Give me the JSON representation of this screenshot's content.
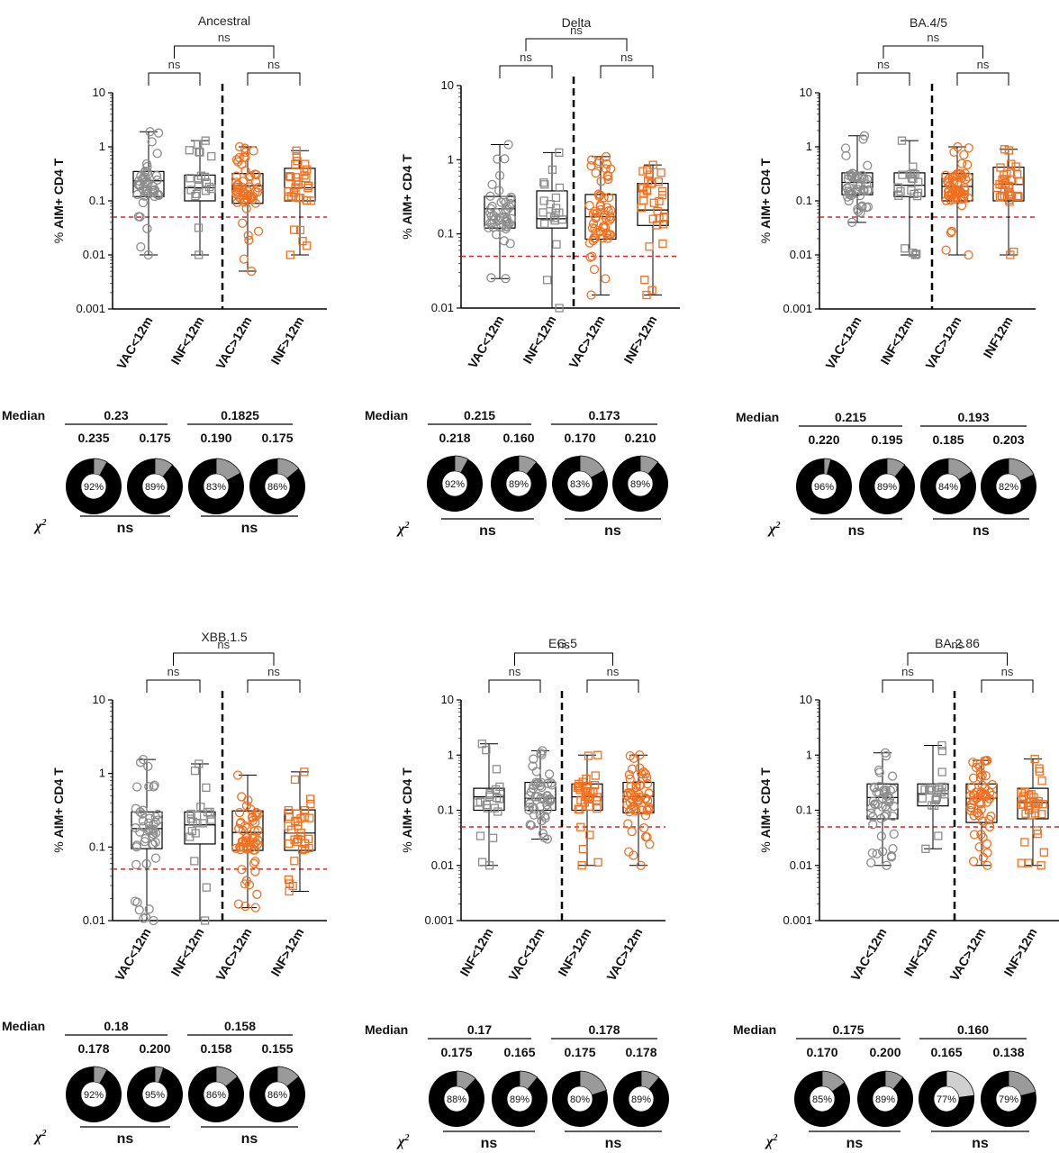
{
  "colors": {
    "grey_points": "#8c8c8c",
    "orange_points": "#f07020",
    "threshold_line": "#d62728",
    "donut_main": "#000000",
    "donut_minor": "#9a9a9a",
    "donut_minor_light": "#d0d0d0"
  },
  "common": {
    "ylabel_prefix": "% ",
    "ylabel_bold": "AIM+ CD4 T",
    "median_title": "Median",
    "chi_label": "χ",
    "chi_sup": "2",
    "ns": "ns"
  },
  "chart_data": [
    {
      "type": "box-scatter",
      "title": "Ancestral",
      "yscale": "log",
      "ylim": [
        0.001,
        10
      ],
      "yticks": [
        "0.001",
        "0.01",
        "0.1",
        "1",
        "10"
      ],
      "threshold": 0.05,
      "categories": [
        "VAC<12m",
        "INF<12m",
        "VAC>12m",
        "INF>12m"
      ],
      "series": [
        {
          "shape": "circle",
          "color": "grey",
          "min": 0.01,
          "q1": 0.12,
          "median": 0.235,
          "q3": 0.35,
          "max": 1.9,
          "n": 48
        },
        {
          "shape": "square",
          "color": "grey",
          "min": 0.01,
          "q1": 0.1,
          "median": 0.175,
          "q3": 0.3,
          "max": 1.3,
          "n": 20
        },
        {
          "shape": "circle",
          "color": "orange",
          "min": 0.005,
          "q1": 0.09,
          "median": 0.19,
          "q3": 0.32,
          "max": 1.0,
          "n": 58
        },
        {
          "shape": "square",
          "color": "orange",
          "min": 0.01,
          "q1": 0.1,
          "median": 0.175,
          "q3": 0.4,
          "max": 0.85,
          "n": 32
        }
      ],
      "significance": {
        "left": "ns",
        "right": "ns",
        "top": "ns"
      },
      "medians": {
        "group_left": "0.23",
        "group_right": "0.1825",
        "values": [
          "0.235",
          "0.175",
          "0.190",
          "0.175"
        ]
      },
      "donuts": [
        92,
        89,
        83,
        86
      ],
      "chi2": [
        "ns",
        "ns"
      ]
    },
    {
      "type": "box-scatter",
      "title": "Delta",
      "yscale": "log",
      "ylim": [
        0.01,
        10
      ],
      "yticks": [
        "0.01",
        "0.1",
        "1",
        "10"
      ],
      "threshold": 0.05,
      "categories": [
        "VAC<12m",
        "INF<12m",
        "VAC>12m",
        "INF>12m"
      ],
      "series": [
        {
          "shape": "circle",
          "color": "grey",
          "min": 0.025,
          "q1": 0.12,
          "median": 0.218,
          "q3": 0.32,
          "max": 1.6,
          "n": 48
        },
        {
          "shape": "square",
          "color": "grey",
          "min": 0.01,
          "q1": 0.12,
          "median": 0.16,
          "q3": 0.38,
          "max": 1.25,
          "n": 20
        },
        {
          "shape": "circle",
          "color": "orange",
          "min": 0.015,
          "q1": 0.085,
          "median": 0.17,
          "q3": 0.34,
          "max": 1.1,
          "n": 58
        },
        {
          "shape": "square",
          "color": "orange",
          "min": 0.015,
          "q1": 0.13,
          "median": 0.21,
          "q3": 0.48,
          "max": 0.85,
          "n": 32
        }
      ],
      "significance": {
        "left": "ns",
        "right": "ns",
        "top": "ns"
      },
      "medians": {
        "group_left": "0.215",
        "group_right": "0.173",
        "values": [
          "0.218",
          "0.160",
          "0.170",
          "0.210"
        ]
      },
      "donuts": [
        92,
        89,
        83,
        89
      ],
      "chi2": [
        "ns",
        "ns"
      ]
    },
    {
      "type": "box-scatter",
      "title": "BA.4/5",
      "yscale": "log",
      "ylim": [
        0.001,
        10
      ],
      "yticks": [
        "0.001",
        "0.01",
        "0.1",
        "1",
        "10"
      ],
      "threshold": 0.05,
      "categories": [
        "VAC<12m",
        "INF<12m",
        "VAC>12m",
        "INF12m"
      ],
      "series": [
        {
          "shape": "circle",
          "color": "grey",
          "min": 0.04,
          "q1": 0.13,
          "median": 0.22,
          "q3": 0.33,
          "max": 1.6,
          "n": 48
        },
        {
          "shape": "square",
          "color": "grey",
          "min": 0.01,
          "q1": 0.12,
          "median": 0.195,
          "q3": 0.33,
          "max": 1.3,
          "n": 20
        },
        {
          "shape": "circle",
          "color": "orange",
          "min": 0.01,
          "q1": 0.1,
          "median": 0.185,
          "q3": 0.32,
          "max": 1.0,
          "n": 58
        },
        {
          "shape": "square",
          "color": "orange",
          "min": 0.01,
          "q1": 0.1,
          "median": 0.203,
          "q3": 0.42,
          "max": 0.9,
          "n": 32
        }
      ],
      "significance": {
        "left": "ns",
        "right": "ns",
        "top": "ns"
      },
      "medians": {
        "group_left": "0.215",
        "group_right": "0.193",
        "values": [
          "0.220",
          "0.195",
          "0.185",
          "0.203"
        ]
      },
      "donuts": [
        96,
        89,
        84,
        82
      ],
      "chi2": [
        "ns",
        "ns"
      ]
    },
    {
      "type": "box-scatter",
      "title": "XBB.1.5",
      "yscale": "log",
      "ylim": [
        0.01,
        10
      ],
      "yticks": [
        "0.01",
        "0.1",
        "1",
        "10"
      ],
      "threshold": 0.05,
      "categories": [
        "VAC<12m",
        "INF<12m",
        "VAC>12m",
        "INF>12m"
      ],
      "series": [
        {
          "shape": "circle",
          "color": "grey",
          "min": 0.01,
          "q1": 0.095,
          "median": 0.178,
          "q3": 0.3,
          "max": 1.55,
          "n": 48
        },
        {
          "shape": "square",
          "color": "grey",
          "min": 0.01,
          "q1": 0.11,
          "median": 0.2,
          "q3": 0.3,
          "max": 1.35,
          "n": 20
        },
        {
          "shape": "circle",
          "color": "orange",
          "min": 0.015,
          "q1": 0.09,
          "median": 0.158,
          "q3": 0.31,
          "max": 0.95,
          "n": 58
        },
        {
          "shape": "square",
          "color": "orange",
          "min": 0.025,
          "q1": 0.09,
          "median": 0.155,
          "q3": 0.32,
          "max": 1.05,
          "n": 32
        }
      ],
      "significance": {
        "left": "ns",
        "right": "ns",
        "top": "ns"
      },
      "medians": {
        "group_left": "0.18",
        "group_right": "0.158",
        "values": [
          "0.178",
          "0.200",
          "0.158",
          "0.155"
        ]
      },
      "donuts": [
        92,
        95,
        86,
        86
      ],
      "chi2": [
        "ns",
        "ns"
      ]
    },
    {
      "type": "box-scatter",
      "title": "EG.5",
      "yscale": "log",
      "ylim": [
        0.001,
        10
      ],
      "yticks": [
        "0.001",
        "0.01",
        "0.1",
        "1",
        "10"
      ],
      "threshold": 0.05,
      "categories": [
        "INF<12m",
        "VAC<12m",
        "INF>12m",
        "VAC>12m"
      ],
      "series": [
        {
          "shape": "square",
          "color": "grey",
          "min": 0.01,
          "q1": 0.1,
          "median": 0.175,
          "q3": 0.25,
          "max": 1.6,
          "n": 20
        },
        {
          "shape": "circle",
          "color": "grey",
          "min": 0.03,
          "q1": 0.1,
          "median": 0.165,
          "q3": 0.32,
          "max": 1.2,
          "n": 48
        },
        {
          "shape": "square",
          "color": "orange",
          "min": 0.01,
          "q1": 0.1,
          "median": 0.175,
          "q3": 0.3,
          "max": 1.0,
          "n": 32
        },
        {
          "shape": "circle",
          "color": "orange",
          "min": 0.01,
          "q1": 0.09,
          "median": 0.178,
          "q3": 0.32,
          "max": 1.0,
          "n": 58
        }
      ],
      "significance": {
        "left": "ns",
        "right": "ns",
        "top": "ns"
      },
      "medians": {
        "group_left": "0.17",
        "group_right": "0.178",
        "values": [
          "0.175",
          "0.165",
          "0.175",
          "0.178"
        ]
      },
      "donuts": [
        88,
        89,
        80,
        89
      ],
      "chi2": [
        "ns",
        "ns"
      ]
    },
    {
      "type": "box-scatter",
      "title": "BA.2.86",
      "yscale": "log",
      "ylim": [
        0.001,
        10
      ],
      "yticks": [
        "0.001",
        "0.01",
        "0.1",
        "1",
        "10"
      ],
      "threshold": 0.05,
      "categories": [
        "VAC<12m",
        "INF<12m",
        "VAC>12m",
        "INF>12m"
      ],
      "series": [
        {
          "shape": "circle",
          "color": "grey",
          "min": 0.01,
          "q1": 0.07,
          "median": 0.17,
          "q3": 0.3,
          "max": 1.1,
          "n": 48
        },
        {
          "shape": "square",
          "color": "grey",
          "min": 0.02,
          "q1": 0.12,
          "median": 0.2,
          "q3": 0.3,
          "max": 1.5,
          "n": 20
        },
        {
          "shape": "circle",
          "color": "orange",
          "min": 0.01,
          "q1": 0.06,
          "median": 0.165,
          "q3": 0.3,
          "max": 0.8,
          "n": 58
        },
        {
          "shape": "square",
          "color": "orange",
          "min": 0.01,
          "q1": 0.07,
          "median": 0.138,
          "q3": 0.25,
          "max": 0.85,
          "n": 32
        }
      ],
      "significance": {
        "left": "ns",
        "right": "ns",
        "top": "ns"
      },
      "medians": {
        "group_left": "0.175",
        "group_right": "0.160",
        "values": [
          "0.170",
          "0.200",
          "0.165",
          "0.138"
        ]
      },
      "donuts": [
        85,
        89,
        77,
        79
      ],
      "chi2": [
        "ns",
        "ns"
      ]
    }
  ]
}
